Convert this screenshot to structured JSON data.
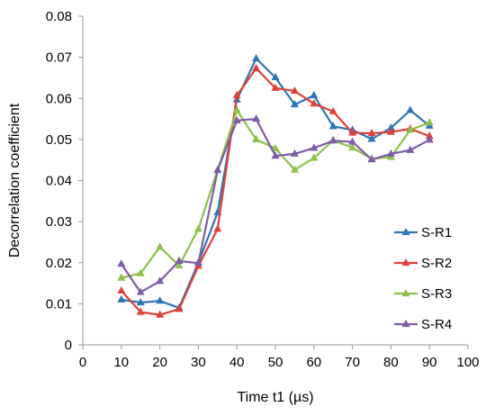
{
  "chart_data": {
    "type": "line",
    "title": "",
    "xlabel": "Time t1 (µs)",
    "ylabel": "Decorrelation coefficient",
    "xlim": [
      0,
      100
    ],
    "ylim": [
      0,
      0.08
    ],
    "x_ticks": [
      "0",
      "10",
      "20",
      "30",
      "40",
      "50",
      "60",
      "70",
      "80",
      "90",
      "100"
    ],
    "y_ticks": [
      "0",
      "0.01",
      "0.02",
      "0.03",
      "0.04",
      "0.05",
      "0.06",
      "0.07",
      "0.08"
    ],
    "grid": false,
    "legend_position": "right",
    "marker": "triangle",
    "x": [
      10,
      15,
      20,
      25,
      30,
      35,
      40,
      45,
      50,
      55,
      60,
      65,
      70,
      75,
      80,
      85,
      90
    ],
    "series": [
      {
        "name": "S-R1",
        "color": "#2E75B6",
        "values": [
          0.011,
          0.0103,
          0.0107,
          0.009,
          0.02,
          0.0322,
          0.0597,
          0.0697,
          0.0651,
          0.0585,
          0.0607,
          0.0532,
          0.0523,
          0.0501,
          0.0528,
          0.0571,
          0.0533
        ]
      },
      {
        "name": "S-R2",
        "color": "#E0403A",
        "values": [
          0.0132,
          0.008,
          0.0073,
          0.0087,
          0.0192,
          0.0282,
          0.0607,
          0.0673,
          0.0625,
          0.0618,
          0.0587,
          0.0568,
          0.0516,
          0.0515,
          0.0518,
          0.0526,
          0.0508
        ]
      },
      {
        "name": "S-R3",
        "color": "#8DC14B",
        "values": [
          0.0163,
          0.0174,
          0.0238,
          0.0193,
          0.0282,
          0.0426,
          0.0571,
          0.05,
          0.0478,
          0.0426,
          0.0455,
          0.0498,
          0.048,
          0.0453,
          0.0457,
          0.0523,
          0.0541
        ]
      },
      {
        "name": "S-R4",
        "color": "#7F5CA8",
        "values": [
          0.0197,
          0.0128,
          0.0155,
          0.0204,
          0.0199,
          0.0425,
          0.0546,
          0.055,
          0.046,
          0.0465,
          0.0479,
          0.0497,
          0.0494,
          0.0451,
          0.0465,
          0.0474,
          0.0499
        ]
      }
    ]
  }
}
